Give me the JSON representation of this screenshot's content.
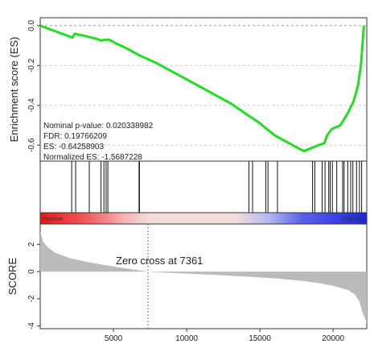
{
  "chart_data": [
    {
      "type": "line",
      "panel": "enrichment score",
      "title": "",
      "xlabel": "",
      "ylabel": "Enrichment score (ES)",
      "y_ticks": [
        "0.0",
        "-0.2",
        "-0.4",
        "-0.6"
      ],
      "ylim": [
        -0.68,
        0.04
      ],
      "xlim": [
        0,
        22300
      ],
      "grid": true,
      "line_color": "#22dd22",
      "series": [
        {
          "x": [
            0,
            2200,
            2350,
            2600,
            3000,
            3500,
            3800,
            4200,
            4400,
            4700,
            5200,
            5800,
            6300,
            6800,
            7100,
            8000,
            9000,
            10000,
            11000,
            12000,
            13000,
            14000,
            15000,
            16000,
            17000,
            18000,
            19000,
            19400,
            19600,
            19900,
            20500,
            21000,
            21400,
            21700,
            21900,
            22100
          ],
          "y": [
            0.0,
            -0.06,
            -0.04,
            -0.045,
            -0.05,
            -0.06,
            -0.065,
            -0.075,
            -0.07,
            -0.07,
            -0.09,
            -0.11,
            -0.13,
            -0.15,
            -0.16,
            -0.19,
            -0.23,
            -0.27,
            -0.31,
            -0.35,
            -0.39,
            -0.44,
            -0.49,
            -0.55,
            -0.59,
            -0.63,
            -0.6,
            -0.59,
            -0.55,
            -0.52,
            -0.5,
            -0.44,
            -0.38,
            -0.3,
            -0.2,
            0.0
          ]
        }
      ],
      "annotations": [
        "Nominal p-value: 0.020338982",
        "FDR: 0.19766209",
        "ES: -0.64258903",
        "Normalized ES: -1.5687228"
      ]
    },
    {
      "type": "other",
      "panel": "gene set hits and rank gradient",
      "hit_positions": [
        2150,
        2420,
        3350,
        4150,
        4350,
        4500,
        4620,
        6750,
        6780,
        14250,
        14500,
        15400,
        15550,
        16200,
        18600,
        18750,
        19250,
        19450,
        19700,
        19800,
        19950,
        20250,
        20650,
        20750,
        21000,
        21200,
        21350,
        21600,
        21800,
        21950
      ],
      "gradient_labels": {
        "left": "Positive",
        "right": "Negative"
      },
      "colors": {
        "positive": "#e8171a",
        "negative": "#1b26e0",
        "middle": "#f2dcdc"
      }
    },
    {
      "type": "area",
      "panel": "ranked list metric",
      "xlabel": "",
      "ylabel": "SCORE",
      "x_ticks": [
        "5000",
        "10000",
        "15000",
        "20000"
      ],
      "y_ticks": [
        "-4",
        "-2",
        "0",
        "2"
      ],
      "ylim": [
        -4.2,
        3.5
      ],
      "xlim": [
        0,
        22300
      ],
      "zero_cross": 7361,
      "zero_cross_label": "Zero cross at 7361",
      "fill_color": "#bbbbbb",
      "series": [
        {
          "x": [
            0,
            200,
            500,
            1000,
            2000,
            3000,
            4000,
            5000,
            6000,
            7000,
            7361,
            8000,
            10000,
            12000,
            14000,
            16000,
            18000,
            19000,
            20000,
            21000,
            21500,
            21800,
            22000,
            22300
          ],
          "y": [
            3.0,
            2.2,
            1.8,
            1.4,
            1.0,
            0.75,
            0.55,
            0.38,
            0.2,
            0.06,
            0.0,
            -0.05,
            -0.15,
            -0.25,
            -0.37,
            -0.5,
            -0.7,
            -0.85,
            -1.05,
            -1.35,
            -1.7,
            -2.2,
            -3.0,
            -3.8
          ]
        }
      ]
    }
  ]
}
